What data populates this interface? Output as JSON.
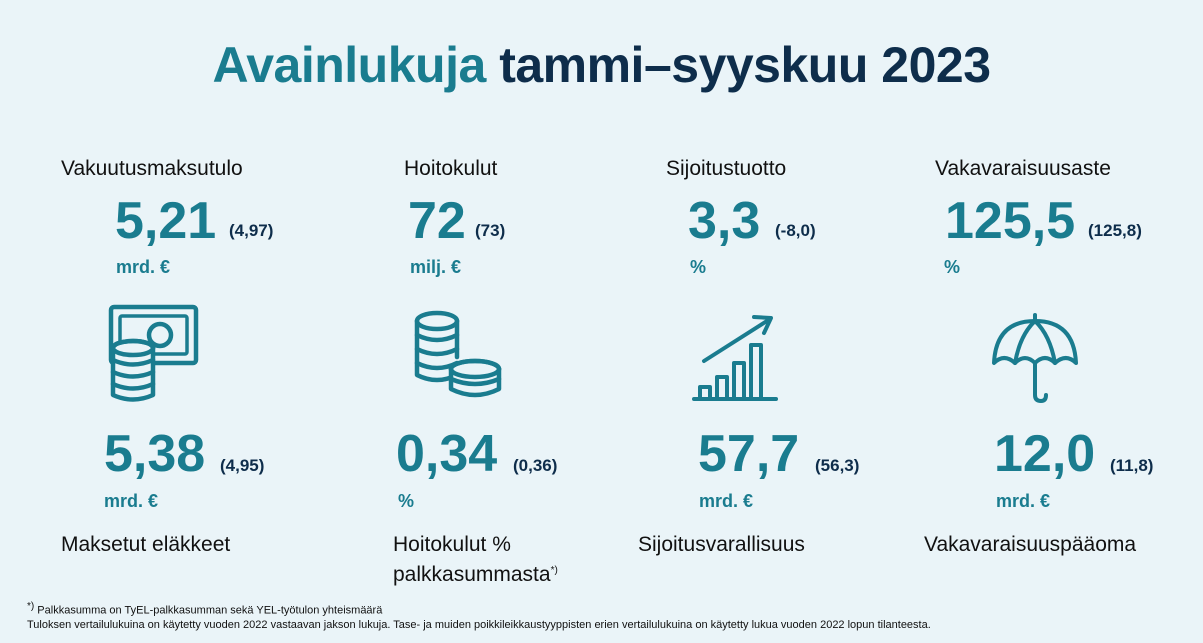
{
  "title": {
    "part1": "Avainlukuja",
    "part2": "tammi–syyskuu 2023"
  },
  "top": [
    {
      "label": "Vakuutusmaksutulo",
      "value": "5,21",
      "comparison": "(4,97)",
      "unit": "mrd. €"
    },
    {
      "label": "Hoitokulut",
      "value": "72",
      "comparison": "(73)",
      "unit": "milj. €"
    },
    {
      "label": "Sijoitustuotto",
      "value": "3,3",
      "comparison": "(-8,0)",
      "unit": "%"
    },
    {
      "label": "Vakavaraisuusaste",
      "value": "125,5",
      "comparison": "(125,8)",
      "unit": "%"
    }
  ],
  "bottom": [
    {
      "label": "Maksetut eläkkeet",
      "value": "5,38",
      "comparison": "(4,95)",
      "unit": "mrd. €"
    },
    {
      "label_line1": "Hoitokulut %",
      "label_line2": "palkkasummasta",
      "label_sup": "*)",
      "value": "0,34",
      "comparison": "(0,36)",
      "unit": "%"
    },
    {
      "label": "Sijoitusvarallisuus",
      "value": "57,7",
      "comparison": "(56,3)",
      "unit": "mrd. €"
    },
    {
      "label": "Vakavaraisuuspääoma",
      "value": "12,0",
      "comparison": "(11,8)",
      "unit": "mrd. €"
    }
  ],
  "icons": [
    "banknote-coins-icon",
    "coin-stacks-icon",
    "growth-chart-icon",
    "umbrella-icon"
  ],
  "colors": {
    "accent": "#1a7c8f",
    "dark": "#0e2d4b",
    "background": "#eaf4f8"
  },
  "footnote": {
    "sup": "*)",
    "line1": "Palkkasumma on TyEL-palkkasumman sekä YEL-työtulon yhteismäärä",
    "line2": "Tuloksen vertailulukuina on käytetty vuoden 2022 vastaavan jakson lukuja. Tase- ja muiden poikkileikkaustyyppisten erien vertailulukuina on käytetty lukua vuoden 2022 lopun tilanteesta."
  }
}
